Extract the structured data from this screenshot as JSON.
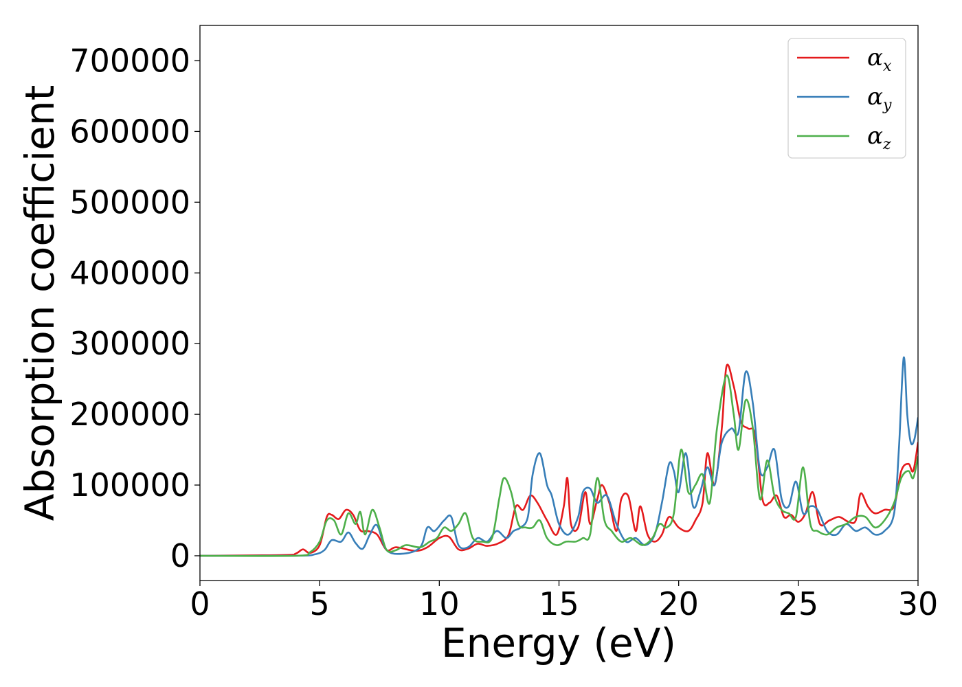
{
  "chart_data": {
    "type": "line",
    "title": "",
    "xlabel": "Energy (eV)",
    "ylabel": "Absorption coefficient",
    "xlim": [
      0,
      30
    ],
    "ylim": [
      -35000,
      750000
    ],
    "xticks": [
      "0",
      "5",
      "10",
      "15",
      "20",
      "25",
      "30"
    ],
    "yticks": [
      "0",
      "100000",
      "200000",
      "300000",
      "400000",
      "500000",
      "600000",
      "700000"
    ],
    "grid": false,
    "legend_position": "top-right",
    "series": [
      {
        "name": "αx",
        "symbol": "α",
        "subscript": "x",
        "color": "#e41a1c",
        "x": [
          0,
          3.5,
          4,
          4.3,
          4.6,
          5,
          5.3,
          5.5,
          5.8,
          6.1,
          6.4,
          6.7,
          7,
          7.4,
          7.8,
          8.2,
          9,
          9.5,
          10,
          10.4,
          10.8,
          11.2,
          11.6,
          12,
          12.5,
          12.9,
          13.2,
          13.5,
          13.8,
          14.1,
          14.5,
          14.9,
          15.2,
          15.35,
          15.5,
          15.8,
          16.1,
          16.3,
          16.6,
          16.8,
          17.1,
          17.4,
          17.6,
          17.9,
          18.2,
          18.4,
          18.7,
          19,
          19.3,
          19.6,
          20,
          20.4,
          20.7,
          21,
          21.2,
          21.5,
          21.8,
          22,
          22.3,
          22.6,
          22.9,
          23.2,
          23.5,
          23.8,
          24.1,
          24.4,
          24.7,
          25,
          25.3,
          25.6,
          25.9,
          26.3,
          26.7,
          27.1,
          27.4,
          27.6,
          27.9,
          28.2,
          28.6,
          29,
          29.3,
          29.6,
          29.8,
          30
        ],
        "y": [
          0,
          1000,
          3000,
          9000,
          4000,
          15000,
          55000,
          58000,
          52000,
          65000,
          58000,
          36000,
          35000,
          30000,
          8000,
          12000,
          7000,
          12000,
          25000,
          27000,
          9000,
          10000,
          17000,
          14000,
          18000,
          30000,
          70000,
          65000,
          85000,
          75000,
          50000,
          30000,
          70000,
          110000,
          45000,
          40000,
          90000,
          45000,
          80000,
          100000,
          75000,
          35000,
          80000,
          84000,
          35000,
          70000,
          30000,
          20000,
          30000,
          55000,
          40000,
          35000,
          50000,
          75000,
          145000,
          100000,
          180000,
          268000,
          240000,
          190000,
          180000,
          170000,
          80000,
          75000,
          85000,
          55000,
          58000,
          48000,
          60000,
          90000,
          45000,
          50000,
          55000,
          48000,
          50000,
          88000,
          70000,
          60000,
          65000,
          70000,
          120000,
          130000,
          120000,
          160000
        ]
      },
      {
        "name": "αy",
        "symbol": "α",
        "subscript": "y",
        "color": "#377eb8",
        "x": [
          0,
          4,
          4.8,
          5.2,
          5.5,
          5.9,
          6.2,
          6.5,
          6.8,
          7.1,
          7.4,
          7.8,
          8.5,
          9.2,
          9.5,
          9.8,
          10.2,
          10.5,
          10.8,
          11.2,
          11.6,
          12,
          12.4,
          12.8,
          13.1,
          13.4,
          13.7,
          13.9,
          14.2,
          14.5,
          14.7,
          15,
          15.4,
          15.8,
          16,
          16.3,
          16.6,
          17,
          17.4,
          17.8,
          18.2,
          18.6,
          19,
          19.3,
          19.6,
          19.8,
          20,
          20.3,
          20.6,
          20.9,
          21.2,
          21.5,
          21.8,
          22.2,
          22.5,
          22.8,
          23.1,
          23.4,
          23.7,
          24,
          24.3,
          24.6,
          24.9,
          25.2,
          25.5,
          25.8,
          26.2,
          26.6,
          27,
          27.4,
          27.8,
          28.2,
          28.6,
          29,
          29.2,
          29.4,
          29.55,
          29.7,
          29.85,
          30
        ],
        "y": [
          0,
          0,
          2000,
          8000,
          22000,
          20000,
          33000,
          18000,
          10000,
          30000,
          43000,
          8000,
          3000,
          12000,
          40000,
          35000,
          50000,
          55000,
          15000,
          12000,
          25000,
          20000,
          35000,
          25000,
          35000,
          40000,
          55000,
          115000,
          145000,
          100000,
          85000,
          45000,
          30000,
          55000,
          90000,
          95000,
          75000,
          85000,
          45000,
          20000,
          25000,
          15000,
          30000,
          75000,
          130000,
          120000,
          90000,
          145000,
          70000,
          90000,
          125000,
          100000,
          160000,
          180000,
          175000,
          260000,
          215000,
          120000,
          125000,
          150000,
          80000,
          70000,
          105000,
          60000,
          70000,
          65000,
          35000,
          30000,
          45000,
          35000,
          40000,
          30000,
          35000,
          60000,
          150000,
          280000,
          200000,
          160000,
          165000,
          195000
        ]
      },
      {
        "name": "αz",
        "symbol": "α",
        "subscript": "z",
        "color": "#4daf4a",
        "x": [
          0,
          4,
          4.6,
          5,
          5.3,
          5.6,
          5.9,
          6.2,
          6.5,
          6.7,
          6.9,
          7.2,
          7.5,
          7.8,
          8.2,
          8.6,
          9.2,
          9.6,
          9.9,
          10.2,
          10.5,
          10.8,
          11.1,
          11.4,
          11.8,
          12.2,
          12.5,
          12.7,
          13,
          13.3,
          13.6,
          13.9,
          14.2,
          14.5,
          14.9,
          15.3,
          15.7,
          16,
          16.3,
          16.6,
          16.9,
          17.2,
          17.6,
          18,
          18.5,
          18.9,
          19.2,
          19.5,
          19.8,
          20.1,
          20.4,
          20.7,
          21,
          21.3,
          21.6,
          22,
          22.3,
          22.5,
          22.8,
          23.1,
          23.4,
          23.7,
          24,
          24.3,
          24.6,
          24.9,
          25.2,
          25.5,
          25.8,
          26.2,
          26.6,
          27,
          27.4,
          27.8,
          28.2,
          28.6,
          29,
          29.3,
          29.6,
          29.8,
          30
        ],
        "y": [
          0,
          0,
          5000,
          20000,
          50000,
          50000,
          30000,
          60000,
          45000,
          62000,
          30000,
          65000,
          40000,
          8000,
          8000,
          15000,
          12000,
          20000,
          25000,
          40000,
          35000,
          45000,
          60000,
          25000,
          20000,
          25000,
          80000,
          110000,
          90000,
          45000,
          40000,
          40000,
          50000,
          25000,
          15000,
          20000,
          20000,
          25000,
          30000,
          110000,
          50000,
          35000,
          20000,
          25000,
          15000,
          25000,
          45000,
          40000,
          60000,
          150000,
          90000,
          100000,
          115000,
          75000,
          180000,
          255000,
          200000,
          150000,
          220000,
          180000,
          80000,
          135000,
          85000,
          65000,
          60000,
          55000,
          125000,
          45000,
          35000,
          30000,
          40000,
          45000,
          55000,
          55000,
          40000,
          50000,
          75000,
          110000,
          120000,
          110000,
          140000
        ]
      }
    ]
  }
}
